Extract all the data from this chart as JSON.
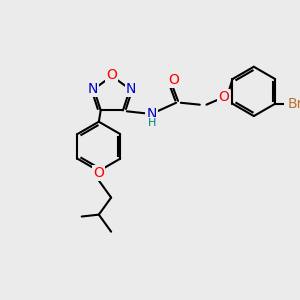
{
  "bg_color": "#ebebeb",
  "bond_color": "#000000",
  "bond_width": 1.5,
  "atom_colors": {
    "N": "#0000cc",
    "O": "#ff0000",
    "Br": "#b87333",
    "H_teal": "#008080"
  },
  "font_size": 9,
  "fig_size": [
    3.0,
    3.0
  ],
  "dpi": 100
}
